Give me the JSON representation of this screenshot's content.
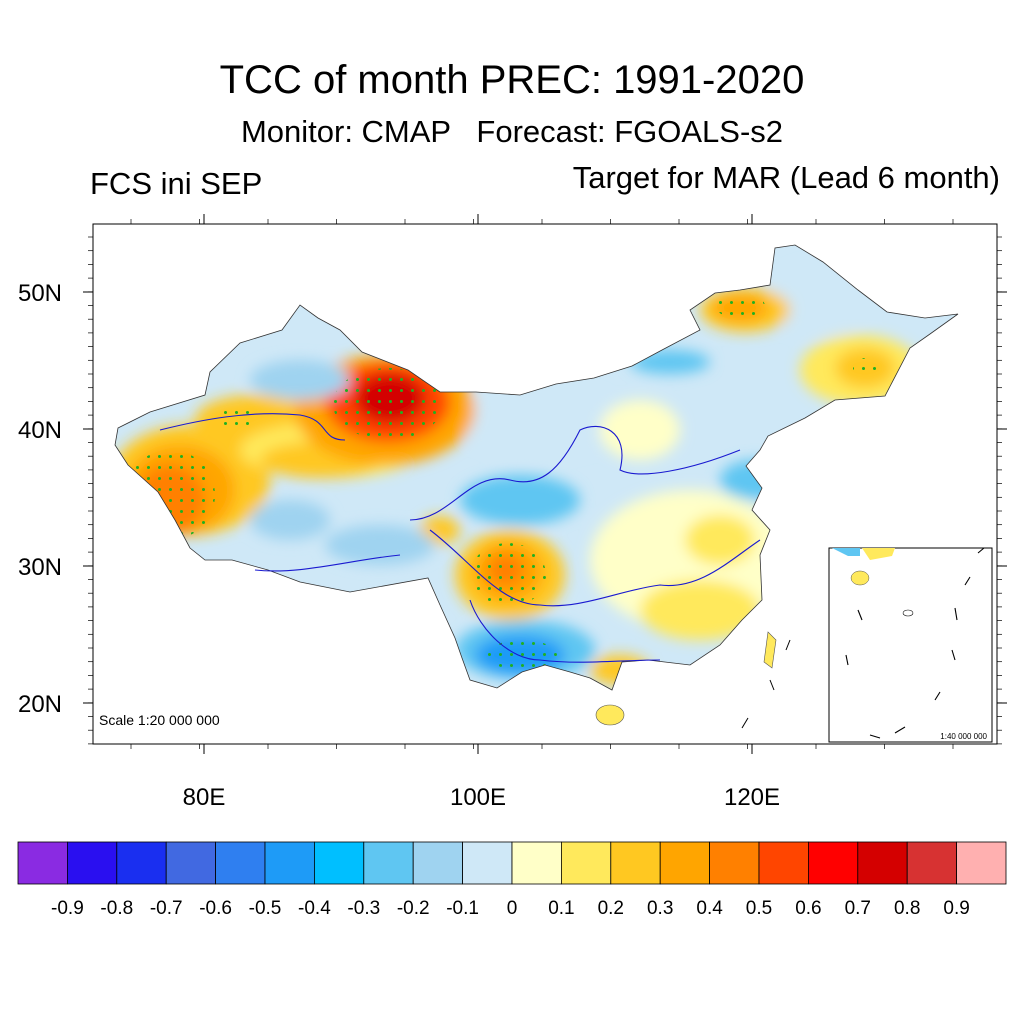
{
  "header": {
    "title": "TCC of month PREC: 1991-2020",
    "subtitle": "Monitor: CMAP   Forecast: FGOALS-s2",
    "left_label": "FCS ini SEP",
    "right_label": "Target for MAR (Lead 6 month)"
  },
  "map": {
    "scale_text": "Scale 1:20 000 000",
    "inset_scale_text": "1:40 000 000",
    "lat_labels": [
      "50N",
      "40N",
      "30N",
      "20N"
    ],
    "lon_labels": [
      "80E",
      "100E",
      "120E"
    ]
  },
  "colorbar": {
    "colors": [
      "#8a2be2",
      "#2a0ff0",
      "#1a2ff0",
      "#4169e1",
      "#2f7ff0",
      "#1e9bf7",
      "#00bfff",
      "#5fc6f2",
      "#9fd3f0",
      "#cfe8f7",
      "#ffffc8",
      "#ffe95c",
      "#ffc821",
      "#ffa500",
      "#ff8000",
      "#ff4500",
      "#ff0000",
      "#d40000",
      "#d73232",
      "#ffb0b0"
    ],
    "labels": [
      "-0.9",
      "-0.8",
      "-0.7",
      "-0.6",
      "-0.5",
      "-0.4",
      "-0.3",
      "-0.2",
      "-0.1",
      "0",
      "0.1",
      "0.2",
      "0.3",
      "0.4",
      "0.5",
      "0.6",
      "0.7",
      "0.8",
      "0.9"
    ]
  }
}
